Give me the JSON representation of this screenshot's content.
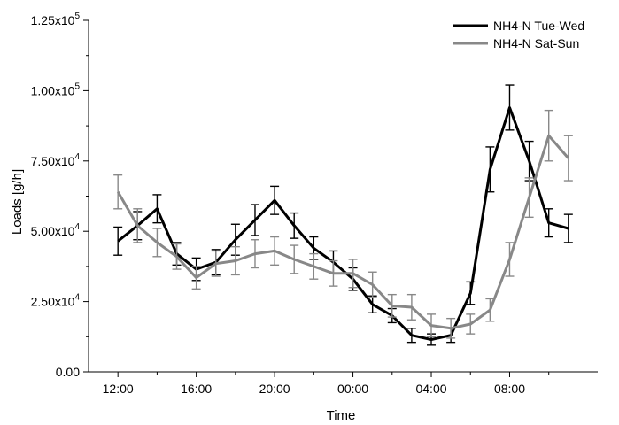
{
  "chart_data": {
    "type": "line",
    "xlabel": "Time",
    "ylabel": "Loads [g/h]",
    "ylim": [
      0,
      125000
    ],
    "yticks": [
      {
        "value": 0,
        "mantissa": "0.00",
        "exp": ""
      },
      {
        "value": 25000,
        "mantissa": "2.50x10",
        "exp": "4"
      },
      {
        "value": 50000,
        "mantissa": "5.00x10",
        "exp": "4"
      },
      {
        "value": 75000,
        "mantissa": "7.50x10",
        "exp": "4"
      },
      {
        "value": 100000,
        "mantissa": "1.00x10",
        "exp": "5"
      },
      {
        "value": 125000,
        "mantissa": "1.25x10",
        "exp": "5"
      }
    ],
    "x_hours_from_noon": [
      0,
      1,
      2,
      3,
      4,
      5,
      6,
      7,
      8,
      9,
      10,
      11,
      12,
      13,
      14,
      15,
      16,
      17,
      18,
      19,
      20,
      21,
      22,
      23
    ],
    "xticks": [
      {
        "label": "12:00",
        "x": 0
      },
      {
        "label": "16:00",
        "x": 4
      },
      {
        "label": "20:00",
        "x": 8
      },
      {
        "label": "00:00",
        "x": 12
      },
      {
        "label": "04:00",
        "x": 16
      },
      {
        "label": "08:00",
        "x": 20
      }
    ],
    "legend_position": "top-right",
    "series": [
      {
        "name": "NH4-N Tue-Wed",
        "color": "#000000",
        "values": [
          46500,
          52000,
          58000,
          42000,
          36500,
          39000,
          47000,
          54000,
          61000,
          52000,
          44000,
          39000,
          33000,
          24000,
          20000,
          13000,
          11500,
          13000,
          28000,
          72000,
          94000,
          75000,
          53000,
          51000
        ],
        "errors": [
          5000,
          5000,
          5000,
          4000,
          4000,
          4500,
          5500,
          5500,
          5000,
          4500,
          4000,
          4000,
          4000,
          3000,
          2500,
          2500,
          2000,
          2500,
          4000,
          8000,
          8000,
          7000,
          5000,
          5000
        ]
      },
      {
        "name": "NH4-N Sat-Sun",
        "color": "#888888",
        "values": [
          64000,
          52000,
          46000,
          41000,
          33500,
          38500,
          39500,
          42000,
          43000,
          40000,
          37500,
          35000,
          35000,
          31000,
          23500,
          23000,
          16500,
          15500,
          17000,
          22000,
          40000,
          62000,
          84000,
          76000
        ],
        "errors": [
          6000,
          6000,
          5000,
          4500,
          4000,
          4500,
          5000,
          5000,
          5000,
          5000,
          4500,
          4500,
          5000,
          4500,
          4000,
          4500,
          4000,
          3500,
          3500,
          4000,
          6000,
          7000,
          9000,
          8000
        ]
      }
    ]
  }
}
